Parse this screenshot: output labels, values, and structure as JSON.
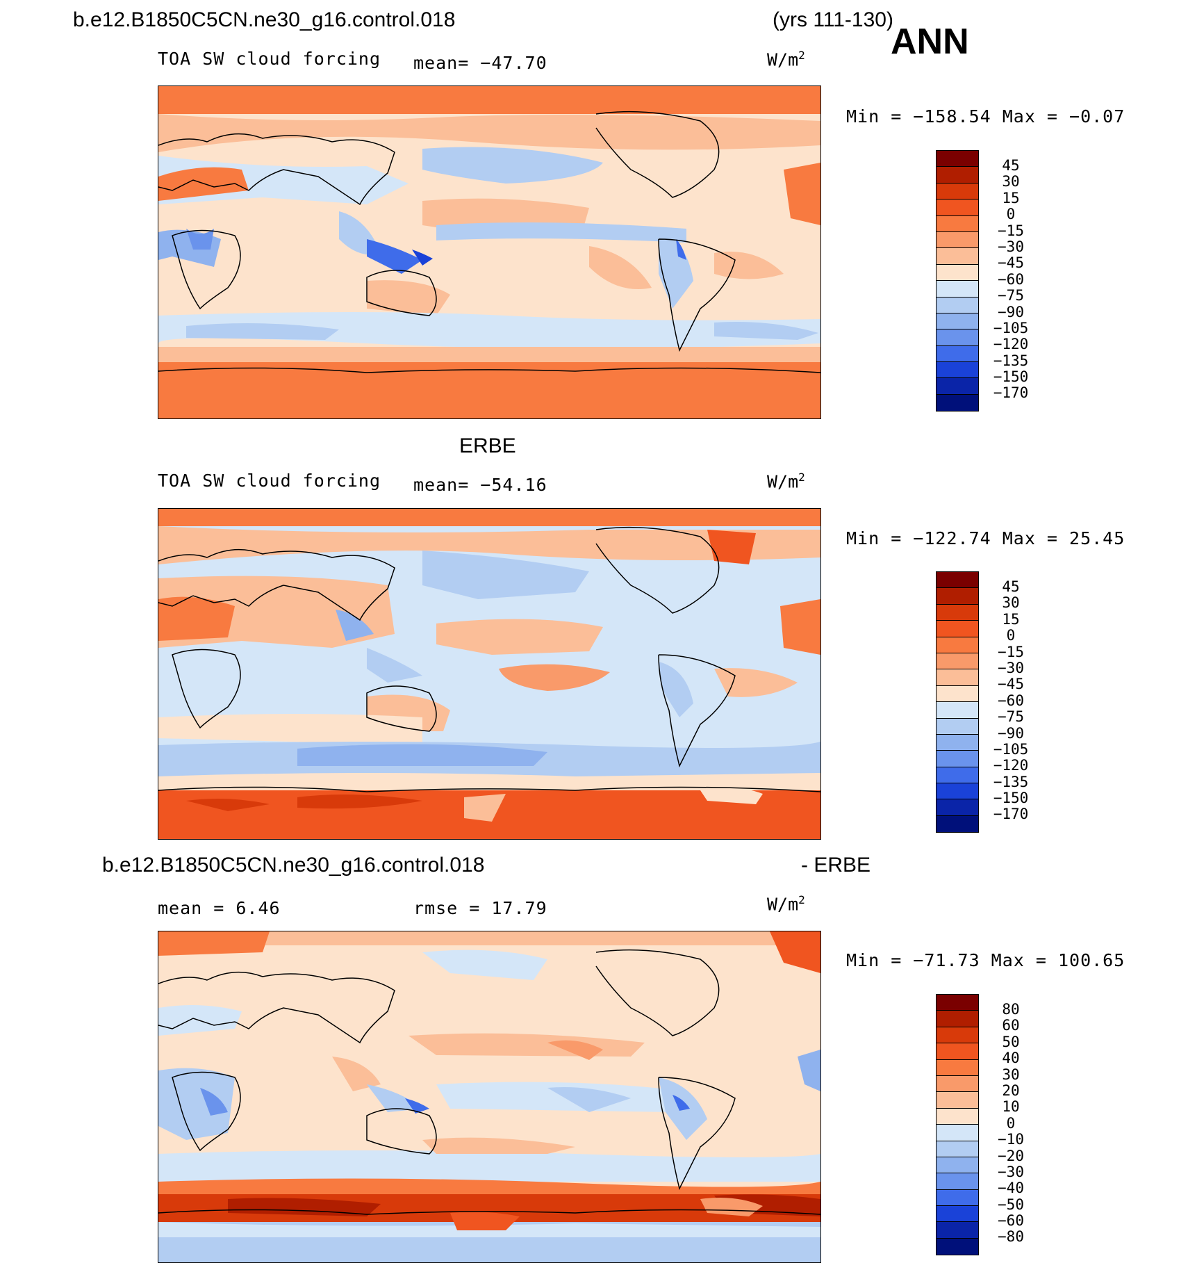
{
  "header": {
    "case_name": "b.e12.B1850C5CN.ne30_g16.control.018",
    "years": "(yrs 111-130)",
    "season": "ANN"
  },
  "panels": [
    {
      "title": "",
      "left_label": "TOA SW cloud forcing",
      "mid_label": "mean= −47.70",
      "units_base": "W/m",
      "units_exp": "2",
      "minmax": "Min = −158.54 Max =  −0.07",
      "colorbar": {
        "ticks": [
          "45",
          "30",
          "15",
          "0",
          "−15",
          "−30",
          "−45",
          "−60",
          "−75",
          "−90",
          "−105",
          "−120",
          "−135",
          "−150",
          "−170"
        ],
        "colors": [
          "#7a0000",
          "#b01e00",
          "#d83a0a",
          "#f05520",
          "#f87a40",
          "#f99a6a",
          "#fbbe98",
          "#fde3cc",
          "#d4e6f8",
          "#b2cdf2",
          "#8fb2ee",
          "#6a93ec",
          "#3f6cea",
          "#1a42d8",
          "#0a24a8",
          "#00107a"
        ]
      }
    },
    {
      "title": "ERBE",
      "left_label": "TOA SW cloud forcing",
      "mid_label": "mean= −54.16",
      "units_base": "W/m",
      "units_exp": "2",
      "minmax": "Min = −122.74 Max =  25.45",
      "colorbar": {
        "ticks": [
          "45",
          "30",
          "15",
          "0",
          "−15",
          "−30",
          "−45",
          "−60",
          "−75",
          "−90",
          "−105",
          "−120",
          "−135",
          "−150",
          "−170"
        ],
        "colors": [
          "#7a0000",
          "#b01e00",
          "#d83a0a",
          "#f05520",
          "#f87a40",
          "#f99a6a",
          "#fbbe98",
          "#fde3cc",
          "#d4e6f8",
          "#b2cdf2",
          "#8fb2ee",
          "#6a93ec",
          "#3f6cea",
          "#1a42d8",
          "#0a24a8",
          "#00107a"
        ]
      }
    },
    {
      "title_left": "b.e12.B1850C5CN.ne30_g16.control.018",
      "title_right": "- ERBE",
      "left_label": "mean =    6.46",
      "mid_label": "rmse =   17.79",
      "units_base": "W/m",
      "units_exp": "2",
      "minmax": "Min = −71.73 Max = 100.65",
      "colorbar": {
        "ticks": [
          "80",
          "60",
          "50",
          "40",
          "30",
          "20",
          "10",
          "0",
          "−10",
          "−20",
          "−30",
          "−40",
          "−50",
          "−60",
          "−80"
        ],
        "colors": [
          "#7a0000",
          "#b01e00",
          "#d83a0a",
          "#f05520",
          "#f87a40",
          "#f99a6a",
          "#fbbe98",
          "#fde3cc",
          "#d4e6f8",
          "#b2cdf2",
          "#8fb2ee",
          "#6a93ec",
          "#3f6cea",
          "#1a42d8",
          "#0a24a8",
          "#00107a"
        ]
      }
    }
  ]
}
